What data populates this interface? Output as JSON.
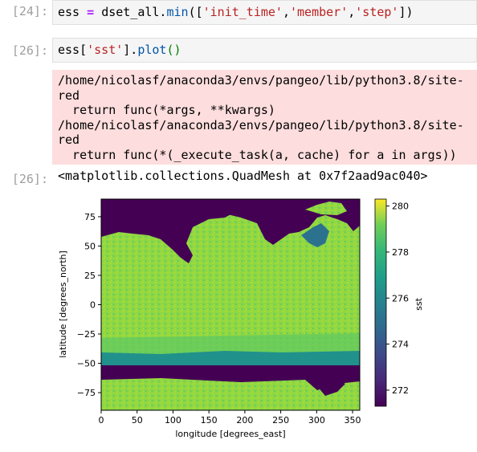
{
  "cells": [
    {
      "prompt": "[24]:",
      "code": {
        "var": "ess",
        "op": "=",
        "obj": "dset_all.",
        "method": "min",
        "args_open": "([",
        "s1": "'init_time'",
        "c1": ",",
        "s2": "'member'",
        "c2": ",",
        "s3": "'step'",
        "args_close": "])"
      }
    },
    {
      "prompt": "[26]:",
      "code": {
        "var": "ess[",
        "s1": "'sst'",
        "close": "].",
        "method": "plot",
        "parens": "()"
      }
    }
  ],
  "stderr_lines": [
    "/home/nicolasf/anaconda3/envs/pangeo/lib/python3.8/site-",
    "red",
    "  return func(*args, **kwargs)",
    "/home/nicolasf/anaconda3/envs/pangeo/lib/python3.8/site-",
    "red",
    "  return func(*(_execute_task(a, cache) for a in args))"
  ],
  "output": {
    "prompt": "[26]:",
    "text": "<matplotlib.collections.QuadMesh at 0x7f2aad9ac040>"
  },
  "chart_data": {
    "type": "heatmap",
    "xlabel": "longitude [degrees_east]",
    "ylabel": "latitude [degrees_north]",
    "colorbar_label": "sst",
    "xlim": [
      0,
      360
    ],
    "ylim": [
      -90,
      90
    ],
    "x_ticks": [
      0,
      50,
      100,
      150,
      200,
      250,
      300,
      350
    ],
    "y_ticks": [
      75,
      50,
      25,
      0,
      -25,
      -50,
      -75
    ],
    "clim": [
      271.3,
      280.3
    ],
    "colorbar_ticks": [
      280,
      278,
      276,
      274,
      272
    ],
    "colormap": "viridis",
    "colors": {
      "land": "#440154",
      "ocean_main": "#8fd744",
      "ocean_mid": "#5ec962",
      "south_band": "#21918c",
      "north_band": "#2c728e"
    }
  }
}
